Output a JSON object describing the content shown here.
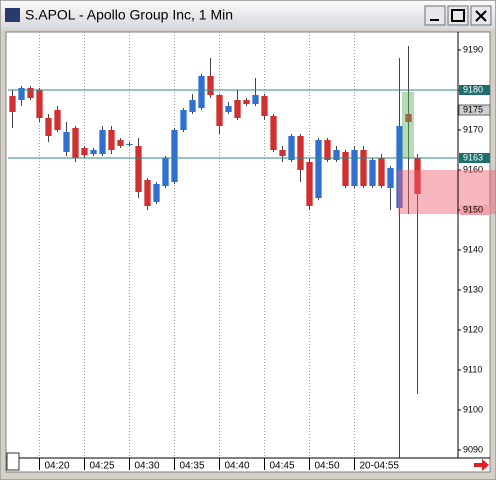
{
  "chart_data": {
    "type": "candlestick",
    "title": "S.APOL - Apollo Group Inc, 1 Min",
    "open": [
      9178.5,
      9177.5,
      9180.5,
      9180,
      9173,
      9175,
      9164.5,
      9170.5,
      9165.5,
      9164,
      9164,
      9170,
      9167.5,
      9166.5,
      9166,
      9157.5,
      9152,
      9156,
      9157,
      9170,
      9174.5,
      9175.5,
      9183.5,
      9178.75,
      9174.5,
      9177.5,
      9177.5,
      9176.5,
      9178.5,
      9173.5,
      9165,
      9162.5,
      9168.5,
      9162,
      9153,
      9167.5,
      9162.5,
      9164.5,
      9156,
      9165,
      9156,
      9163,
      9155.5,
      9150.5,
      9174,
      9163
    ],
    "high": [
      9180,
      9181,
      9181,
      9180.5,
      9174,
      9176,
      9172,
      9171,
      9166,
      9165.5,
      9171,
      9171,
      9168,
      9167,
      9168,
      9158,
      9157,
      9163.5,
      9170.5,
      9175.5,
      9179,
      9184,
      9188,
      9179,
      9177,
      9180,
      9178,
      9183,
      9179,
      9174,
      9166,
      9169,
      9169,
      9163,
      9168,
      9168,
      9166,
      9165,
      9166,
      9166,
      9163,
      9164,
      9161,
      9188,
      9191,
      9164
    ],
    "low": [
      9170.5,
      9176,
      9177.5,
      9172,
      9167,
      9169.5,
      9163.5,
      9162,
      9163,
      9163.5,
      9163.5,
      9164,
      9165.5,
      9166,
      9153,
      9150,
      9151.5,
      9155.5,
      9156.5,
      9169.5,
      9174,
      9175,
      9178,
      9169,
      9174,
      9172.5,
      9176,
      9176,
      9172.5,
      9164.5,
      9162,
      9162,
      9157,
      9150,
      9152.5,
      9162,
      9162,
      9155.5,
      9155.5,
      9155.5,
      9155.5,
      9155.5,
      9150,
      9088,
      9149,
      9104
    ],
    "close": [
      9174.5,
      9180.5,
      9178,
      9173,
      9168.5,
      9170,
      9169.5,
      9163,
      9163.7,
      9165,
      9170,
      9165,
      9166,
      9166.5,
      9154.5,
      9151,
      9156.5,
      9163,
      9170,
      9175,
      9177.5,
      9183.5,
      9178.75,
      9171,
      9176,
      9173,
      9176.5,
      9178.75,
      9173.5,
      9165,
      9163.5,
      9168.5,
      9160,
      9151,
      9167.5,
      9162.5,
      9165,
      9156,
      9165,
      9156,
      9162.5,
      9156,
      9160.5,
      9171,
      9172,
      9154
    ],
    "up_color": "#3070d0",
    "down_color": "#d03030",
    "xlim": [
      -0.5,
      49.5
    ],
    "xticks": [
      {
        "value": 3,
        "label": "04:20"
      },
      {
        "value": 8,
        "label": "04:25"
      },
      {
        "value": 13,
        "label": "04:30"
      },
      {
        "value": 18,
        "label": "04:35"
      },
      {
        "value": 23,
        "label": "04:40"
      },
      {
        "value": 28,
        "label": "04:45"
      },
      {
        "value": 33,
        "label": "04:50"
      },
      {
        "value": 38,
        "label": "20-04:55"
      }
    ],
    "ylim": [
      9088,
      9194.5
    ],
    "yticks": [
      9090,
      9100,
      9110,
      9120,
      9130,
      9140,
      9150,
      9160,
      9170,
      9180,
      9190
    ],
    "markers": [
      {
        "value": 9180,
        "style": "line"
      },
      {
        "value": 9175,
        "style": "last"
      },
      {
        "value": 9163,
        "style": "line"
      },
      {
        "value": 9150,
        "style": "zone"
      }
    ],
    "grid": true
  }
}
